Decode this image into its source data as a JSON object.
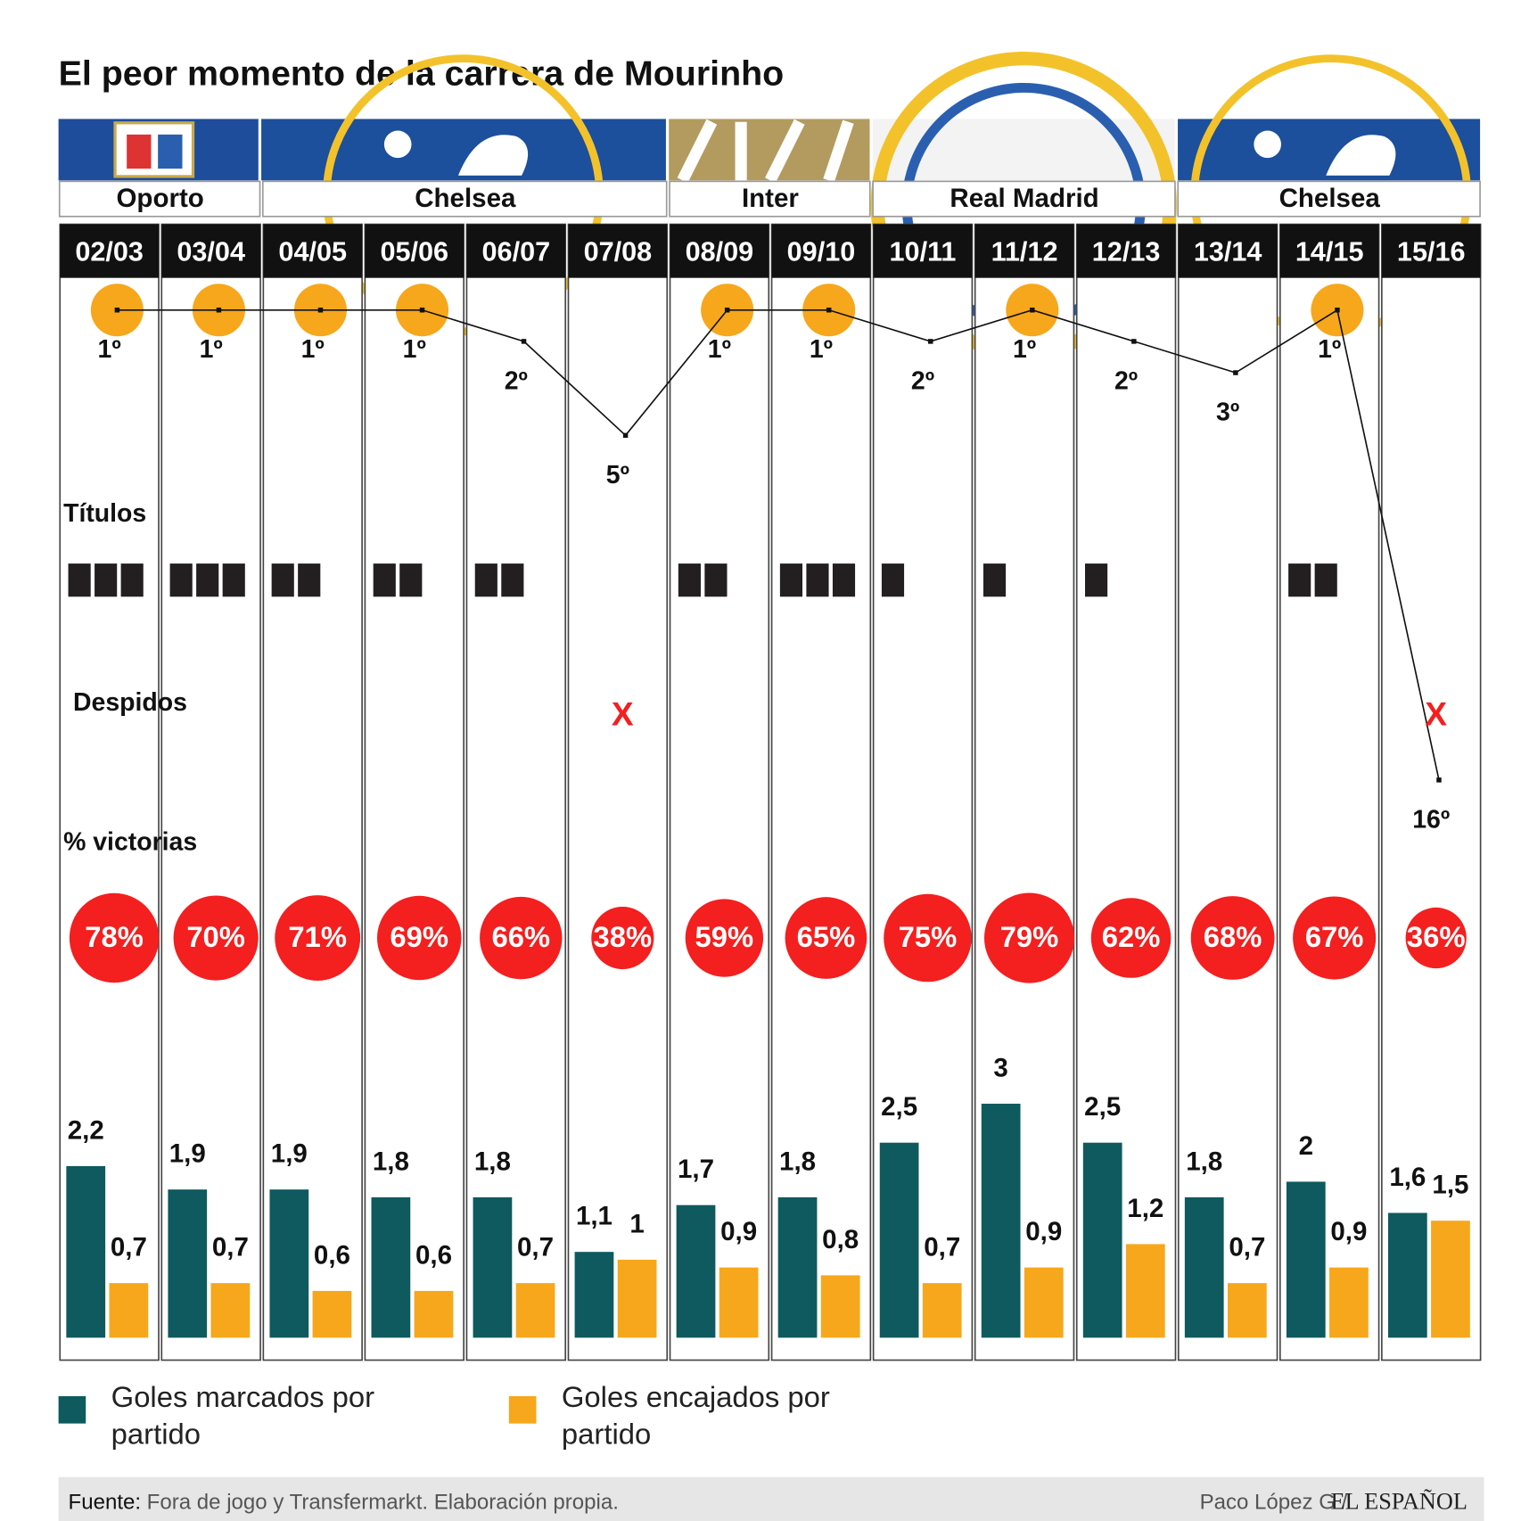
{
  "title": "El peor momento de la carrera de Mourinho",
  "clubs": [
    {
      "name": "Oporto",
      "seasons": 2
    },
    {
      "name": "Chelsea",
      "seasons": 4
    },
    {
      "name": "Inter",
      "seasons": 2
    },
    {
      "name": "Real Madrid",
      "seasons": 3
    },
    {
      "name": "Chelsea",
      "seasons": 3
    }
  ],
  "titles": {
    "label": "Títulos",
    "values": [
      3,
      3,
      2,
      2,
      2,
      0,
      2,
      3,
      1,
      1,
      1,
      0,
      2,
      0
    ],
    "color": "#231f20"
  },
  "fired": {
    "label": "Despidos",
    "values": [
      false,
      false,
      false,
      false,
      false,
      true,
      false,
      false,
      false,
      false,
      false,
      false,
      false,
      true
    ],
    "mark": "X",
    "color": "#f41f1f"
  },
  "wins": {
    "label": "% victorias",
    "values": [
      78,
      70,
      71,
      69,
      66,
      38,
      59,
      65,
      75,
      79,
      62,
      68,
      67,
      36
    ],
    "value_labels": [
      "78%",
      "70%",
      "71%",
      "69%",
      "66%",
      "38%",
      "59%",
      "65%",
      "75%",
      "79%",
      "62%",
      "68%",
      "67%",
      "36%"
    ],
    "color": "#f41f1f"
  },
  "chart_data": [
    {
      "type": "line",
      "categories": [
        "02/03",
        "03/04",
        "04/05",
        "05/06",
        "06/07",
        "07/08",
        "08/09",
        "09/10",
        "10/11",
        "11/12",
        "12/13",
        "13/14",
        "14/15",
        "15/16"
      ],
      "values": [
        1,
        1,
        1,
        1,
        2,
        5,
        1,
        1,
        2,
        1,
        2,
        3,
        1,
        16
      ],
      "value_labels": [
        "1º",
        "1º",
        "1º",
        "1º",
        "2º",
        "5º",
        "1º",
        "1º",
        "2º",
        "1º",
        "2º",
        "3º",
        "1º",
        "16º"
      ],
      "ylim": [
        1,
        16
      ],
      "color": "#111111",
      "highlight_color": "#f7a71c"
    },
    {
      "type": "bar",
      "ylim": [
        0,
        3
      ],
      "series": [
        {
          "name": "Goles marcados por partido",
          "color": "#0e5a5e",
          "values": [
            2.2,
            1.9,
            1.9,
            1.8,
            1.8,
            1.1,
            1.7,
            1.8,
            2.5,
            3,
            2.5,
            1.8,
            2,
            1.6
          ],
          "value_labels": [
            "2,2",
            "1,9",
            "1,9",
            "1,8",
            "1,8",
            "1,1",
            "1,7",
            "1,8",
            "2,5",
            "3",
            "2,5",
            "1,8",
            "2",
            "1,6"
          ]
        },
        {
          "name": "Goles encajados por partido",
          "color": "#f7a71c",
          "values": [
            0.7,
            0.7,
            0.6,
            0.6,
            0.7,
            1,
            0.9,
            0.8,
            0.7,
            0.9,
            1.2,
            0.7,
            0.9,
            1.5
          ],
          "value_labels": [
            "0,7",
            "0,7",
            "0,6",
            "0,6",
            "0,7",
            "1",
            "0,9",
            "0,8",
            "0,7",
            "0,9",
            "1,2",
            "0,7",
            "0,9",
            "1,5"
          ]
        }
      ]
    }
  ],
  "footer": {
    "source_label": "Fuente:",
    "source": "Fora de jogo y Transfermarkt. Elaboración propia.",
    "credit": "Paco López G /",
    "publisher": "EL ESPAÑOL"
  }
}
